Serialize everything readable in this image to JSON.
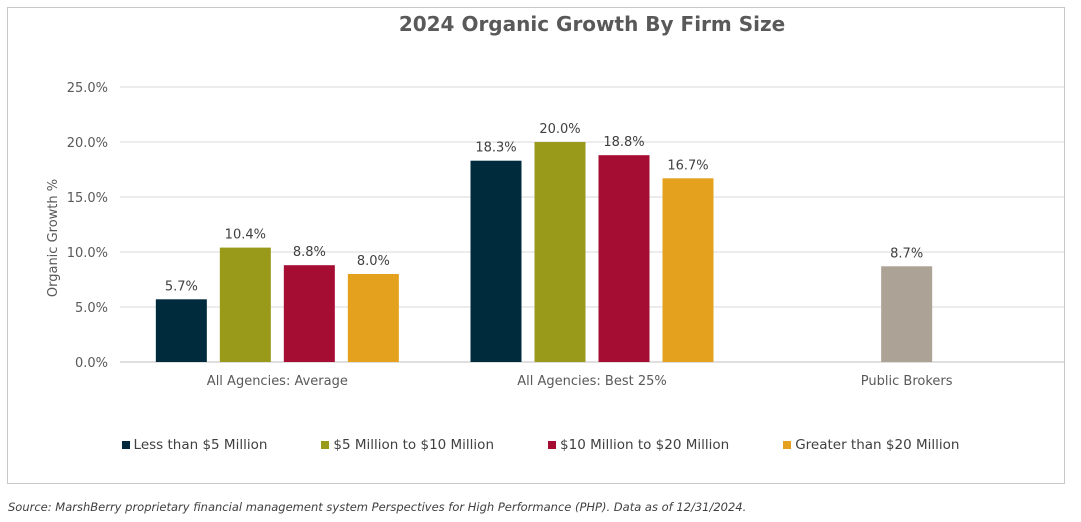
{
  "chart_data": {
    "type": "bar",
    "title": "2024 Organic Growth By Firm Size",
    "ylabel": "Organic Growth %",
    "xlabel": "",
    "ylim": [
      0,
      25
    ],
    "yticks": [
      "0.0%",
      "5.0%",
      "10.0%",
      "15.0%",
      "20.0%",
      "25.0%"
    ],
    "grid": true,
    "legend_position": "bottom",
    "categories": [
      "All Agencies: Average",
      "All Agencies: Best 25%",
      "Public Brokers"
    ],
    "series": [
      {
        "name": "Less than $5 Million",
        "color": "#002b3d",
        "values": [
          5.7,
          18.3,
          null
        ],
        "labels": [
          "5.7%",
          "18.3%",
          null
        ]
      },
      {
        "name": "$5 Million to $10 Million",
        "color": "#9a9a1a",
        "values": [
          10.4,
          20.0,
          null
        ],
        "labels": [
          "10.4%",
          "20.0%",
          null
        ]
      },
      {
        "name": "$10 Million to $20 Million",
        "color": "#a50d32",
        "values": [
          8.8,
          18.8,
          null
        ],
        "labels": [
          "8.8%",
          "18.8%",
          null
        ]
      },
      {
        "name": "Greater than $20 Million",
        "color": "#e3a11e",
        "values": [
          8.0,
          16.7,
          null
        ],
        "labels": [
          "8.0%",
          "16.7%",
          null
        ]
      }
    ],
    "extra_bars": [
      {
        "category": "Public Brokers",
        "value": 8.7,
        "label": "8.7%",
        "color": "#aca295"
      }
    ]
  },
  "source": "Source: MarshBerry proprietary financial management system Perspectives for High Performance (PHP). Data as of 12/31/2024."
}
